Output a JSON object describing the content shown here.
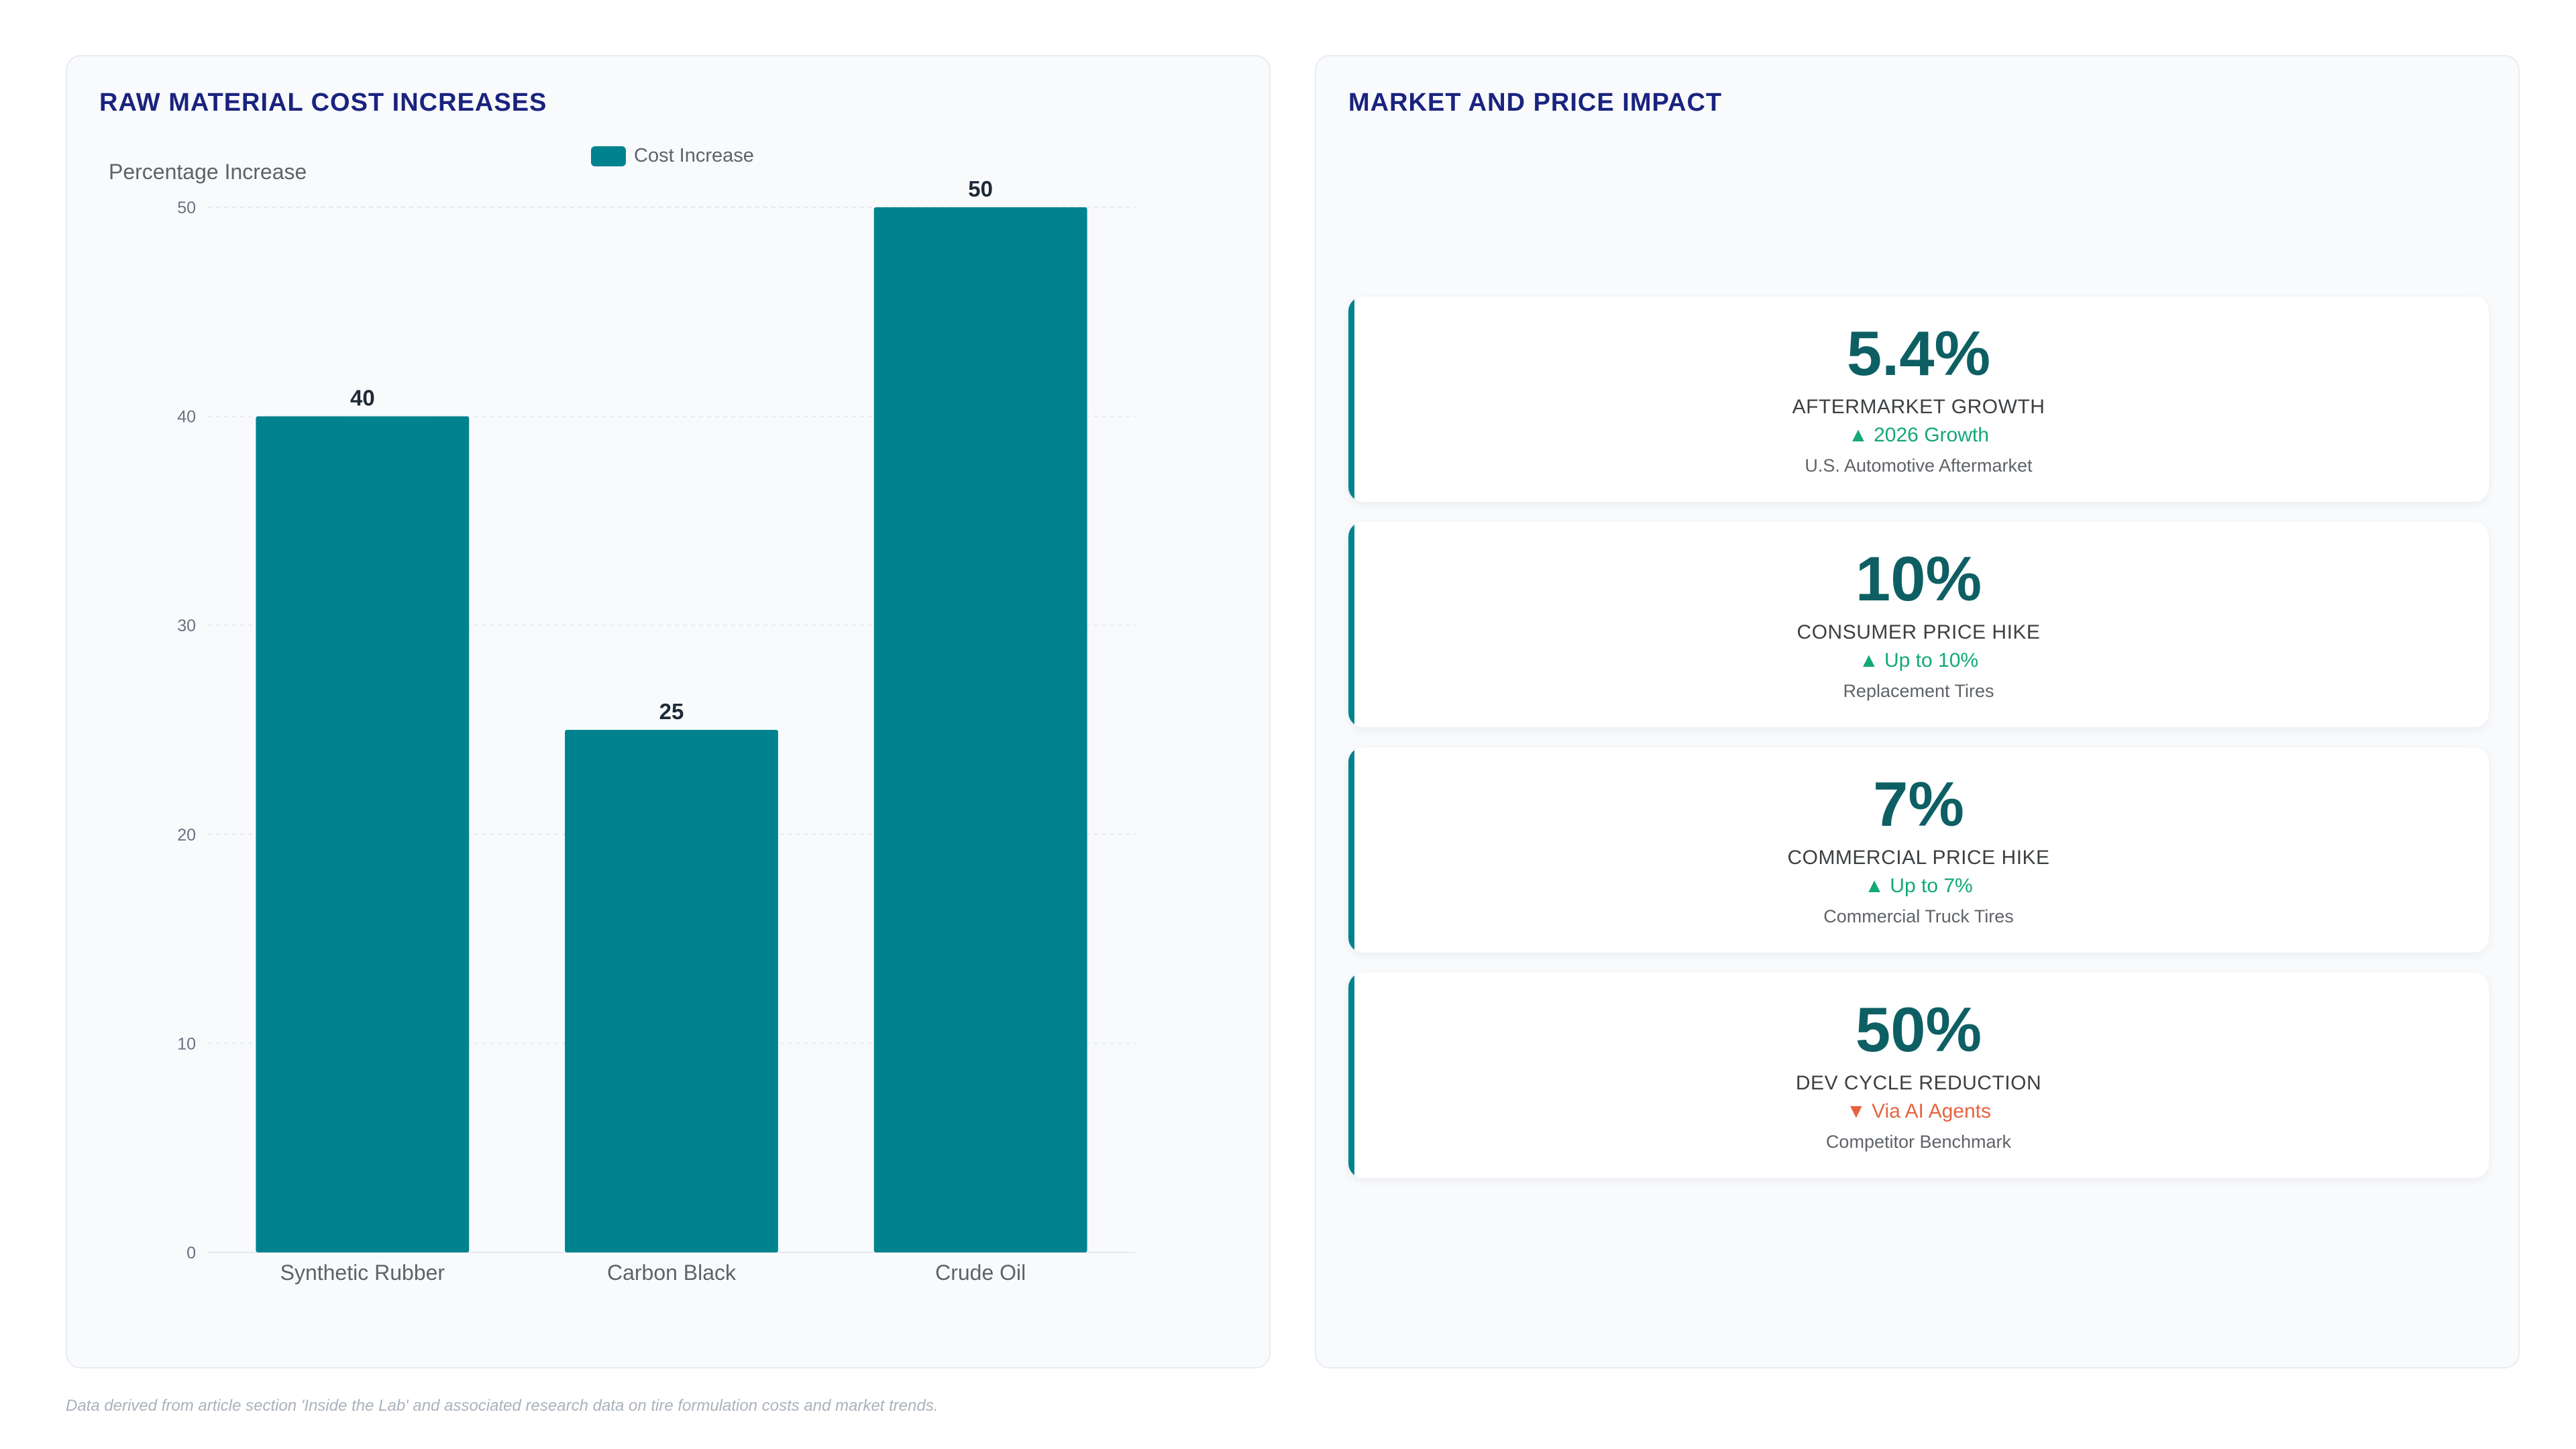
{
  "chart_data": {
    "type": "bar",
    "title": "RAW MATERIAL COST INCREASES",
    "categories": [
      "Synthetic Rubber",
      "Carbon Black",
      "Crude Oil"
    ],
    "series": [
      {
        "name": "Cost Increase",
        "values": [
          40,
          25,
          50
        ]
      }
    ],
    "ylabel": "Percentage Increase",
    "xlabel": "",
    "ylim": [
      0,
      50
    ],
    "yticks": [
      0,
      10,
      20,
      30,
      40,
      50
    ],
    "grid": true,
    "legend_position": "top-center",
    "data_labels": true,
    "colors": {
      "bar": "#00838f"
    }
  },
  "market_panel": {
    "title": "MARKET AND PRICE IMPACT",
    "cards": [
      {
        "value": "5.4%",
        "label": "AFTERMARKET GROWTH",
        "trend": "▲ 2026 Growth",
        "trend_dir": "up",
        "sub": "U.S. Automotive Aftermarket"
      },
      {
        "value": "10%",
        "label": "CONSUMER PRICE HIKE",
        "trend": "▲ Up to 10%",
        "trend_dir": "up",
        "sub": "Replacement Tires"
      },
      {
        "value": "7%",
        "label": "COMMERCIAL PRICE HIKE",
        "trend": "▲ Up to 7%",
        "trend_dir": "up",
        "sub": "Commercial Truck Tires"
      },
      {
        "value": "50%",
        "label": "DEV CYCLE REDUCTION",
        "trend": "▼ Via AI Agents",
        "trend_dir": "down",
        "sub": "Competitor Benchmark"
      }
    ]
  },
  "footnote": "Data derived from article section 'Inside the Lab' and associated research data on tire formulation costs and market trends.",
  "colors": {
    "accent": "#00838f",
    "title": "#1a237e",
    "value": "#0d5f63",
    "trend_up": "#12a87a",
    "trend_down": "#e5643f"
  }
}
